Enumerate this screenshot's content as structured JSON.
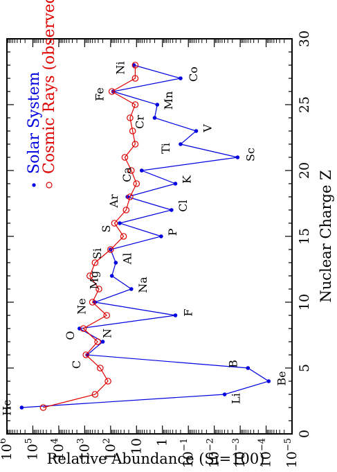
{
  "chart_data": {
    "type": "scatter",
    "xlabel": "Nuclear Charge Z",
    "ylabel": "Relative Abundance  (Si=100)",
    "xlim": [
      0,
      30
    ],
    "ylim_log10": [
      -5,
      6
    ],
    "yscale": "log",
    "grid": false,
    "legend_placement": "top-left",
    "x_ticks": [
      0,
      5,
      10,
      15,
      20,
      25,
      30
    ],
    "y_ticks": [
      {
        "exp": 6,
        "label": "10",
        "sup": "6"
      },
      {
        "exp": 5,
        "label": "10",
        "sup": "5"
      },
      {
        "exp": 4,
        "label": "10",
        "sup": "4"
      },
      {
        "exp": 3,
        "label": "10",
        "sup": "3"
      },
      {
        "exp": 2,
        "label": "10",
        "sup": "2"
      },
      {
        "exp": 1,
        "label": "10",
        "sup": ""
      },
      {
        "exp": 0,
        "label": "1",
        "sup": ""
      },
      {
        "exp": -1,
        "label": "10",
        "sup": "−1"
      },
      {
        "exp": -2,
        "label": "10",
        "sup": "−2"
      },
      {
        "exp": -3,
        "label": "10",
        "sup": "−3"
      },
      {
        "exp": -4,
        "label": "10",
        "sup": "−4"
      },
      {
        "exp": -5,
        "label": "10",
        "sup": "−5"
      }
    ],
    "series": [
      {
        "name": "Solar System",
        "color": "#0000e0",
        "marker": "filled-dot",
        "x": [
          2,
          3,
          4,
          5,
          6,
          7,
          8,
          9,
          10,
          11,
          12,
          13,
          14,
          15,
          16,
          17,
          18,
          19,
          20,
          21,
          22,
          23,
          24,
          25,
          26,
          27,
          28
        ],
        "log10_y": [
          5.43,
          -2.4,
          -4.1,
          -3.3,
          2.9,
          2.3,
          3.2,
          -0.5,
          2.6,
          1.2,
          1.95,
          1.8,
          2.0,
          0.05,
          1.65,
          -0.35,
          1.35,
          -0.5,
          0.8,
          -2.9,
          -0.7,
          -1.3,
          0.3,
          0.2,
          1.9,
          -0.7,
          1.1
        ],
        "labels": [
          "He",
          "Li",
          "Be",
          "B",
          "C",
          "N",
          "O",
          "F",
          "Ne",
          "Na",
          "Mg",
          "Al",
          "Si",
          "P",
          "S",
          "Cl",
          "Ar",
          "K",
          "Ca",
          "Sc",
          "Ti",
          "V",
          "Cr",
          "Mn",
          "Fe",
          "Co",
          "Ni"
        ]
      },
      {
        "name": "Cosmic Rays (observed)",
        "color": "#e00000",
        "marker": "open-circle",
        "x": [
          2,
          3,
          4,
          5,
          6,
          7,
          8,
          9,
          10,
          11,
          12,
          13,
          14,
          15,
          16,
          17,
          18,
          19,
          20,
          21,
          22,
          23,
          24,
          25,
          26,
          27,
          28
        ],
        "log10_y": [
          4.6,
          2.6,
          2.1,
          2.4,
          2.95,
          2.5,
          3.05,
          2.15,
          2.7,
          2.45,
          2.8,
          2.6,
          2.0,
          1.5,
          1.85,
          1.4,
          1.25,
          1.0,
          1.2,
          1.45,
          1.05,
          1.15,
          1.25,
          1.05,
          1.95,
          1.05,
          1.05
        ]
      }
    ]
  }
}
